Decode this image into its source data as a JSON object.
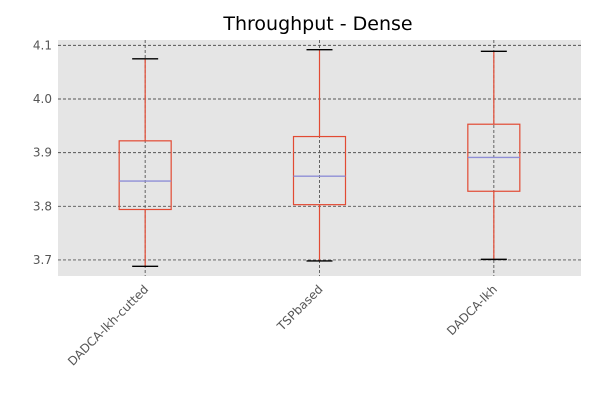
{
  "chart_data": {
    "type": "box",
    "title": "Throughput - Dense",
    "xlabel": "",
    "ylabel": "",
    "ylim": [
      3.67,
      4.11
    ],
    "yticks": [
      3.7,
      3.8,
      3.9,
      4.0,
      4.1
    ],
    "ytick_labels": [
      "3.7",
      "3.8",
      "3.9",
      "4.0",
      "4.1"
    ],
    "grid": true,
    "categories": [
      "DADCA-lkh-cutted",
      "TSPbased",
      "DADCA-lkh"
    ],
    "boxes": [
      {
        "min": 3.688,
        "q1": 3.794,
        "median": 3.847,
        "q3": 3.922,
        "max": 4.075
      },
      {
        "min": 3.698,
        "q1": 3.803,
        "median": 3.856,
        "q3": 3.93,
        "max": 4.092
      },
      {
        "min": 3.701,
        "q1": 3.828,
        "median": 3.891,
        "q3": 3.953,
        "max": 4.089
      }
    ],
    "colors": {
      "plot_background": "#e5e5e5",
      "grid": "#555555",
      "box": "#e24a33",
      "median": "#8e8ed6",
      "cap": "#000000"
    }
  }
}
